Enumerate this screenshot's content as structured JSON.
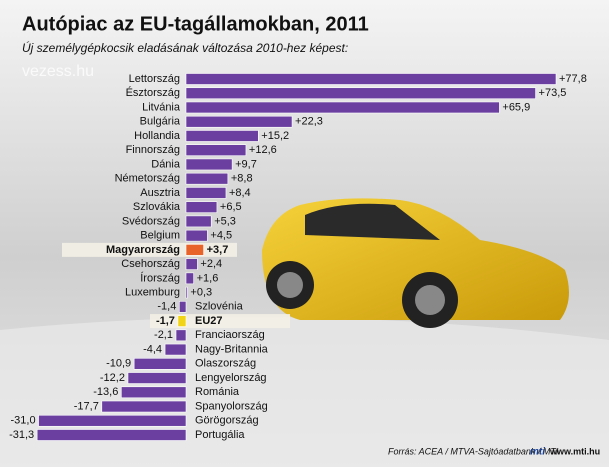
{
  "chart_data": {
    "type": "hbar",
    "title": "Autópiac az EU-tagállamokban, 2011",
    "subtitle": "Új személygépkocsik eladásának változása 2010-hez képest:",
    "watermark": "vezess.hu",
    "source": "Forrás: ACEA / MTVA-Sajtóadatbank / MTI",
    "logo": "mti",
    "site": "www.mti.hu",
    "categories": [
      "Lettország",
      "Észtország",
      "Litvánia",
      "Bulgária",
      "Hollandia",
      "Finnország",
      "Dánia",
      "Németország",
      "Ausztria",
      "Szlovákia",
      "Svédország",
      "Belgium",
      "Magyarország",
      "Csehország",
      "Írország",
      "Luxemburg",
      "Szlovénia",
      "EU27",
      "Franciaország",
      "Nagy-Britannia",
      "Olaszország",
      "Lengyelország",
      "Románia",
      "Spanyolország",
      "Görögország",
      "Portugália"
    ],
    "values": [
      77.8,
      73.5,
      65.9,
      22.3,
      15.2,
      12.6,
      9.7,
      8.8,
      8.4,
      6.5,
      5.3,
      4.5,
      3.7,
      2.4,
      1.6,
      0.3,
      -1.4,
      -1.7,
      -2.1,
      -4.4,
      -10.9,
      -12.2,
      -13.6,
      -17.7,
      -31.0,
      -31.3
    ],
    "value_labels": [
      "+77,8",
      "+73,5",
      "+65,9",
      "+22,3",
      "+15,2",
      "+12,6",
      "+9,7",
      "+8,8",
      "+8,4",
      "+6,5",
      "+5,3",
      "+4,5",
      "+3,7",
      "+2,4",
      "+1,6",
      "+0,3",
      "-1,4",
      "-1,7",
      "-2,1",
      "-4,4",
      "-10,9",
      "-12,2",
      "-13,6",
      "-17,7",
      "-31,0",
      "-31,3"
    ],
    "color": "#6a3fa0",
    "highlights": [
      {
        "index": 12,
        "color": "#e8632a"
      },
      {
        "index": 17,
        "color": "#f2d417"
      }
    ]
  }
}
